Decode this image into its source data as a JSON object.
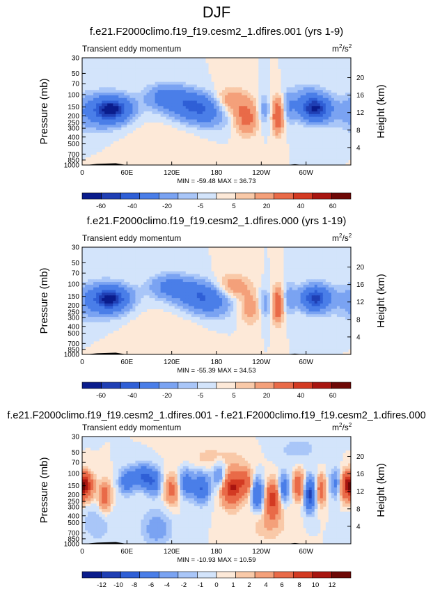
{
  "page": {
    "title": "DJF"
  },
  "colors": {
    "contour_palette_11": [
      "#0a1c8c",
      "#1f3fb4",
      "#2f5fd6",
      "#4a7ee8",
      "#7aa3f2",
      "#a9c6f8",
      "#d3e4fb",
      "#fde9d8",
      "#f9c9a8",
      "#f4a07a",
      "#e96a48",
      "#d33a22",
      "#a81510",
      "#6e0806"
    ],
    "continent_fill": "#000000",
    "background": "#ffffff"
  },
  "chart_data": [
    {
      "type": "heatmap",
      "title": "f.e21.F2000climo.f19_f19.cesm2_1.dfires.001 (yrs 1-9)",
      "left_label": "Transient eddy momentum",
      "units_label": "m",
      "units_sup1": "2",
      "units_mid": "/s",
      "units_sup2": "2",
      "ylabel": "Pressure (mb)",
      "y2label": "Height (km)",
      "xticks": [
        "0",
        "60E",
        "120E",
        "180",
        "120W",
        "60W"
      ],
      "xtick_values": [
        0,
        60,
        120,
        180,
        240,
        300
      ],
      "xlim": [
        0,
        360
      ],
      "yticks": [
        "30",
        "50",
        "70",
        "100",
        "150",
        "200",
        "250",
        "300",
        "400",
        "500",
        "700",
        "850",
        "1000"
      ],
      "ytick_values": [
        30,
        50,
        70,
        100,
        150,
        200,
        250,
        300,
        400,
        500,
        700,
        850,
        1000
      ],
      "ylim": [
        30,
        1000
      ],
      "y2ticks": [
        "20",
        "16",
        "12",
        "8",
        "4"
      ],
      "y2tick_values": [
        20,
        16,
        12,
        8,
        4
      ],
      "min_max_text": "MIN = -59.48   MAX = 36.73",
      "colorbar_labels": [
        "-60",
        "-40",
        "-20",
        "-5",
        "5",
        "20",
        "40",
        "60"
      ],
      "colorbar_levels": [
        -70,
        -60,
        -50,
        -40,
        -30,
        -20,
        -10,
        -5,
        0,
        5,
        10,
        20,
        30,
        40,
        50,
        60,
        70
      ],
      "field": [
        {
          "lon": 40,
          "p": 160,
          "v": -55,
          "rx": 24,
          "ry": 0.38
        },
        {
          "lon": 20,
          "p": 180,
          "v": -20,
          "rx": 40,
          "ry": 0.6
        },
        {
          "lon": 115,
          "p": 110,
          "v": -30,
          "rx": 28,
          "ry": 0.4
        },
        {
          "lon": 155,
          "p": 150,
          "v": -40,
          "rx": 32,
          "ry": 0.45
        },
        {
          "lon": 175,
          "p": 200,
          "v": -12,
          "rx": 30,
          "ry": 0.5
        },
        {
          "lon": 195,
          "p": 130,
          "v": 22,
          "rx": 26,
          "ry": 0.45
        },
        {
          "lon": 220,
          "p": 220,
          "v": 25,
          "rx": 16,
          "ry": 0.5
        },
        {
          "lon": 243,
          "p": 170,
          "v": -15,
          "rx": 8,
          "ry": 0.5
        },
        {
          "lon": 262,
          "p": 200,
          "v": 36,
          "rx": 7,
          "ry": 0.55
        },
        {
          "lon": 278,
          "p": 150,
          "v": -15,
          "rx": 8,
          "ry": 0.5
        },
        {
          "lon": 312,
          "p": 160,
          "v": -59,
          "rx": 20,
          "ry": 0.4
        },
        {
          "lon": 300,
          "p": 110,
          "v": -12,
          "rx": 22,
          "ry": 0.45
        },
        {
          "lon": 130,
          "p": 450,
          "v": 3,
          "rx": 40,
          "ry": 0.6
        },
        {
          "lon": 70,
          "p": 350,
          "v": 2,
          "rx": 40,
          "ry": 0.7
        }
      ]
    },
    {
      "type": "heatmap",
      "title": "f.e21.F2000climo.f19_f19.cesm2_1.dfires.000 (yrs 1-19)",
      "left_label": "Transient eddy momentum",
      "units_label": "m",
      "units_sup1": "2",
      "units_mid": "/s",
      "units_sup2": "2",
      "ylabel": "Pressure (mb)",
      "y2label": "Height (km)",
      "xticks": [
        "0",
        "60E",
        "120E",
        "180",
        "120W",
        "60W"
      ],
      "xtick_values": [
        0,
        60,
        120,
        180,
        240,
        300
      ],
      "xlim": [
        0,
        360
      ],
      "yticks": [
        "30",
        "50",
        "70",
        "100",
        "150",
        "200",
        "250",
        "300",
        "400",
        "500",
        "700",
        "850",
        "1000"
      ],
      "ytick_values": [
        30,
        50,
        70,
        100,
        150,
        200,
        250,
        300,
        400,
        500,
        700,
        850,
        1000
      ],
      "ylim": [
        30,
        1000
      ],
      "y2ticks": [
        "20",
        "16",
        "12",
        "8",
        "4"
      ],
      "y2tick_values": [
        20,
        16,
        12,
        8,
        4
      ],
      "min_max_text": "MIN = -55.39   MAX = 34.53",
      "colorbar_labels": [
        "-60",
        "-40",
        "-20",
        "-5",
        "5",
        "20",
        "40",
        "60"
      ],
      "colorbar_levels": [
        -70,
        -60,
        -50,
        -40,
        -30,
        -20,
        -10,
        -5,
        0,
        5,
        10,
        20,
        30,
        40,
        50,
        60,
        70
      ],
      "field": [
        {
          "lon": 38,
          "p": 160,
          "v": -52,
          "rx": 24,
          "ry": 0.38
        },
        {
          "lon": 20,
          "p": 180,
          "v": -18,
          "rx": 40,
          "ry": 0.6
        },
        {
          "lon": 120,
          "p": 110,
          "v": -28,
          "rx": 28,
          "ry": 0.38
        },
        {
          "lon": 160,
          "p": 150,
          "v": -35,
          "rx": 30,
          "ry": 0.45
        },
        {
          "lon": 178,
          "p": 200,
          "v": -12,
          "rx": 26,
          "ry": 0.5
        },
        {
          "lon": 200,
          "p": 110,
          "v": 18,
          "rx": 24,
          "ry": 0.4
        },
        {
          "lon": 225,
          "p": 220,
          "v": 15,
          "rx": 14,
          "ry": 0.5
        },
        {
          "lon": 245,
          "p": 190,
          "v": -15,
          "rx": 8,
          "ry": 0.5
        },
        {
          "lon": 262,
          "p": 200,
          "v": 34,
          "rx": 7,
          "ry": 0.55
        },
        {
          "lon": 278,
          "p": 160,
          "v": -14,
          "rx": 8,
          "ry": 0.5
        },
        {
          "lon": 312,
          "p": 160,
          "v": -55,
          "rx": 20,
          "ry": 0.4
        },
        {
          "lon": 130,
          "p": 450,
          "v": 3,
          "rx": 40,
          "ry": 0.6
        },
        {
          "lon": 70,
          "p": 350,
          "v": 2,
          "rx": 40,
          "ry": 0.7
        }
      ]
    },
    {
      "type": "heatmap",
      "title": "f.e21.F2000climo.f19_f19.cesm2_1.dfires.001 - f.e21.F2000climo.f19_f19.cesm2_1.dfires.000",
      "left_label": "Transient eddy momentum",
      "units_label": "m",
      "units_sup1": "2",
      "units_mid": "/s",
      "units_sup2": "2",
      "ylabel": "Pressure (mb)",
      "y2label": "Height (km)",
      "xticks": [
        "0",
        "60E",
        "120E",
        "180",
        "120W",
        "60W"
      ],
      "xtick_values": [
        0,
        60,
        120,
        180,
        240,
        300
      ],
      "xlim": [
        0,
        360
      ],
      "yticks": [
        "30",
        "50",
        "70",
        "100",
        "150",
        "200",
        "250",
        "300",
        "400",
        "500",
        "700",
        "850",
        "1000"
      ],
      "ytick_values": [
        30,
        50,
        70,
        100,
        150,
        200,
        250,
        300,
        400,
        500,
        700,
        850,
        1000
      ],
      "ylim": [
        30,
        1000
      ],
      "y2ticks": [
        "20",
        "16",
        "12",
        "8",
        "4"
      ],
      "y2tick_values": [
        20,
        16,
        12,
        8,
        4
      ],
      "min_max_text": "MIN = -10.93   MAX = 10.59",
      "colorbar_labels": [
        "-12",
        "-10",
        "-8",
        "-6",
        "-4",
        "-2",
        "-1",
        "0",
        "1",
        "2",
        "4",
        "6",
        "8",
        "10",
        "12"
      ],
      "colorbar_levels": [
        -14,
        -12,
        -10,
        -8,
        -6,
        -4,
        -2,
        -1,
        0,
        1,
        2,
        4,
        6,
        8,
        10,
        12,
        14
      ],
      "field": [
        {
          "lon": 5,
          "p": 150,
          "v": 9,
          "rx": 10,
          "ry": 0.4
        },
        {
          "lon": 30,
          "p": 220,
          "v": 6,
          "rx": 8,
          "ry": 0.5
        },
        {
          "lon": 60,
          "p": 130,
          "v": -6,
          "rx": 10,
          "ry": 0.4
        },
        {
          "lon": 80,
          "p": 110,
          "v": -8,
          "rx": 12,
          "ry": 0.35
        },
        {
          "lon": 95,
          "p": 130,
          "v": -7,
          "rx": 10,
          "ry": 0.4
        },
        {
          "lon": 120,
          "p": 170,
          "v": 5,
          "rx": 10,
          "ry": 0.5
        },
        {
          "lon": 140,
          "p": 140,
          "v": -6,
          "rx": 10,
          "ry": 0.45
        },
        {
          "lon": 160,
          "p": 160,
          "v": -8,
          "rx": 10,
          "ry": 0.45
        },
        {
          "lon": 185,
          "p": 110,
          "v": -5,
          "rx": 10,
          "ry": 0.45
        },
        {
          "lon": 200,
          "p": 160,
          "v": 10.5,
          "rx": 14,
          "ry": 0.55
        },
        {
          "lon": 218,
          "p": 130,
          "v": 6,
          "rx": 10,
          "ry": 0.4
        },
        {
          "lon": 235,
          "p": 200,
          "v": -8,
          "rx": 8,
          "ry": 0.5
        },
        {
          "lon": 255,
          "p": 230,
          "v": 9,
          "rx": 9,
          "ry": 0.55
        },
        {
          "lon": 270,
          "p": 160,
          "v": -6,
          "rx": 7,
          "ry": 0.45
        },
        {
          "lon": 290,
          "p": 150,
          "v": 7,
          "rx": 7,
          "ry": 0.45
        },
        {
          "lon": 305,
          "p": 200,
          "v": -10.9,
          "rx": 7,
          "ry": 0.5
        },
        {
          "lon": 320,
          "p": 170,
          "v": 6,
          "rx": 6,
          "ry": 0.45
        },
        {
          "lon": 340,
          "p": 140,
          "v": -5,
          "rx": 8,
          "ry": 0.45
        },
        {
          "lon": 355,
          "p": 150,
          "v": 9,
          "rx": 10,
          "ry": 0.45
        },
        {
          "lon": 100,
          "p": 600,
          "v": -3,
          "rx": 20,
          "ry": 0.6
        },
        {
          "lon": 250,
          "p": 500,
          "v": 2,
          "rx": 25,
          "ry": 0.6
        },
        {
          "lon": 20,
          "p": 500,
          "v": -2,
          "rx": 20,
          "ry": 0.6
        },
        {
          "lon": 180,
          "p": 60,
          "v": 1.5,
          "rx": 40,
          "ry": 0.4
        },
        {
          "lon": 290,
          "p": 45,
          "v": -1.5,
          "rx": 30,
          "ry": 0.4
        }
      ]
    }
  ]
}
